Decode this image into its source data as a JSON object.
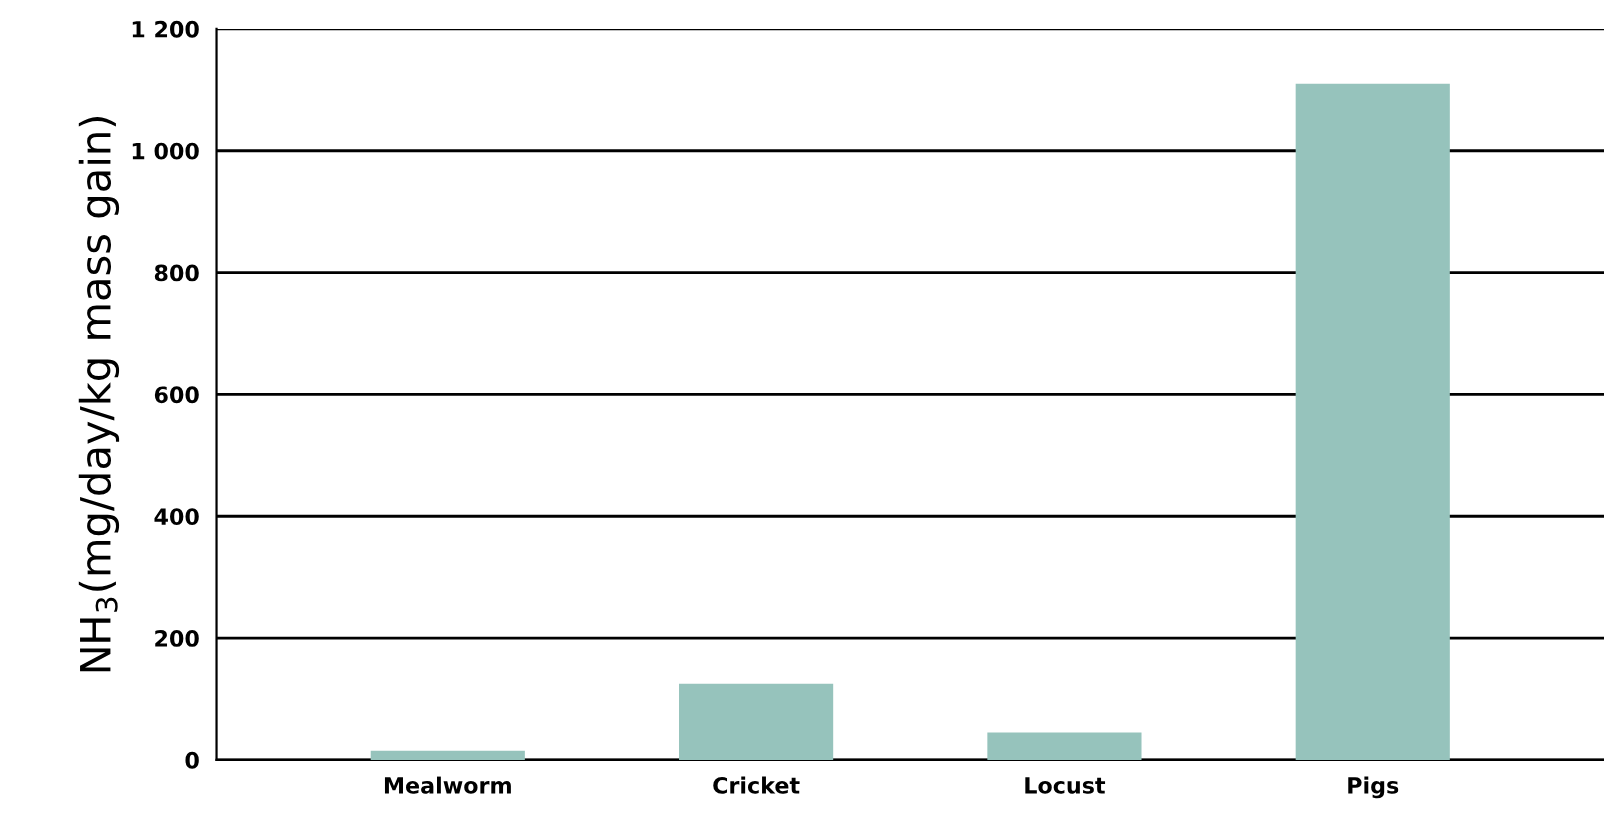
{
  "chart_data": {
    "type": "bar",
    "ylabel": "NH$_{3}$(mg/day/kg mass gain)",
    "categories": [
      "Mealworm",
      "Cricket",
      "Locust",
      "Pigs"
    ],
    "values": [
      15,
      125,
      45,
      1110
    ],
    "color": "#96c3bc",
    "ylim": [
      0,
      1200
    ],
    "yticks": [
      0,
      200,
      400,
      600,
      800,
      {
        "value": 1000,
        "label": "1 000"
      },
      {
        "value": 1200,
        "label": "1 200"
      }
    ],
    "grid": "y"
  }
}
